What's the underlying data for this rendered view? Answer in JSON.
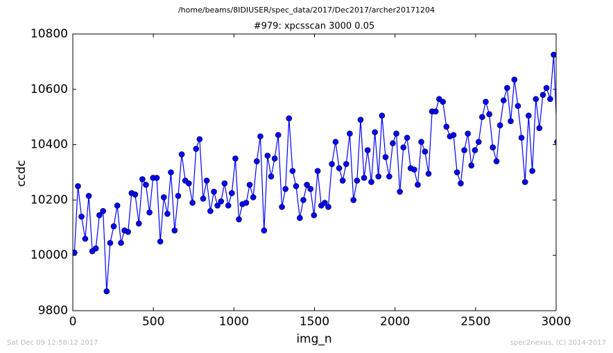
{
  "chart_data": {
    "type": "line",
    "title": "/home/beams/8IDIUSER/spec_data/2017/Dec2017/archer20171204",
    "subtitle": "#979: xpcsscan 3000 0.05",
    "xlabel": "img_n",
    "ylabel": "ccdc",
    "xlim": [
      0,
      3000
    ],
    "xticks": [
      0,
      500,
      1000,
      1500,
      2000,
      2500,
      3000
    ],
    "ylim": [
      9800,
      10800
    ],
    "yticks": [
      9800,
      10000,
      10200,
      10400,
      10600,
      10800
    ],
    "grid": false,
    "x": [
      10,
      32,
      54,
      77,
      99,
      121,
      143,
      165,
      188,
      210,
      232,
      254,
      276,
      299,
      321,
      343,
      365,
      387,
      410,
      432,
      454,
      476,
      498,
      521,
      543,
      565,
      587,
      609,
      632,
      654,
      676,
      698,
      720,
      743,
      765,
      787,
      809,
      831,
      854,
      876,
      898,
      920,
      942,
      965,
      987,
      1009,
      1031,
      1053,
      1076,
      1098,
      1120,
      1142,
      1164,
      1187,
      1209,
      1231,
      1253,
      1275,
      1298,
      1320,
      1342,
      1364,
      1386,
      1409,
      1431,
      1453,
      1475,
      1497,
      1520,
      1542,
      1564,
      1586,
      1608,
      1631,
      1653,
      1675,
      1697,
      1719,
      1742,
      1764,
      1786,
      1808,
      1830,
      1853,
      1875,
      1897,
      1919,
      1941,
      1964,
      1986,
      2008,
      2030,
      2052,
      2075,
      2097,
      2119,
      2141,
      2163,
      2186,
      2208,
      2230,
      2252,
      2274,
      2297,
      2319,
      2341,
      2363,
      2385,
      2408,
      2430,
      2452,
      2474,
      2496,
      2519,
      2541,
      2563,
      2585,
      2607,
      2630,
      2652,
      2674,
      2696,
      2718,
      2741,
      2763,
      2785,
      2807,
      2829,
      2852,
      2874,
      2896,
      2918,
      2940,
      2963,
      2985,
      3007
    ],
    "series": [
      {
        "color": "#0000ff",
        "values": [
          10010,
          10250,
          10140,
          10060,
          10215,
          10015,
          10025,
          10145,
          10160,
          9870,
          10045,
          10105,
          10180,
          10045,
          10090,
          10085,
          10225,
          10220,
          10115,
          10275,
          10255,
          10155,
          10280,
          10280,
          10050,
          10210,
          10150,
          10300,
          10090,
          10215,
          10365,
          10270,
          10260,
          10190,
          10385,
          10420,
          10205,
          10270,
          10160,
          10230,
          10180,
          10195,
          10260,
          10180,
          10225,
          10350,
          10130,
          10185,
          10190,
          10255,
          10210,
          10340,
          10430,
          10090,
          10360,
          10285,
          10350,
          10435,
          10175,
          10240,
          10495,
          10305,
          10250,
          10135,
          10200,
          10255,
          10240,
          10145,
          10305,
          10180,
          10190,
          10175,
          10330,
          10410,
          10315,
          10270,
          10330,
          10440,
          10200,
          10270,
          10490,
          10280,
          10380,
          10265,
          10445,
          10285,
          10505,
          10355,
          10285,
          10405,
          10440,
          10230,
          10390,
          10425,
          10315,
          10310,
          10255,
          10410,
          10375,
          10295,
          10520,
          10520,
          10565,
          10555,
          10465,
          10430,
          10435,
          10300,
          10260,
          10380,
          10440,
          10325,
          10380,
          10410,
          10500,
          10555,
          10510,
          10390,
          10340,
          10470,
          10560,
          10605,
          10485,
          10635,
          10540,
          10425,
          10265,
          10505,
          10305,
          10565,
          10460,
          10580,
          10605,
          10565,
          10725,
          10410
        ]
      }
    ]
  },
  "footer": {
    "left": "Sat Dec 09 12:58:12 2017",
    "right": "spec2nexus, (C) 2014-2017"
  }
}
